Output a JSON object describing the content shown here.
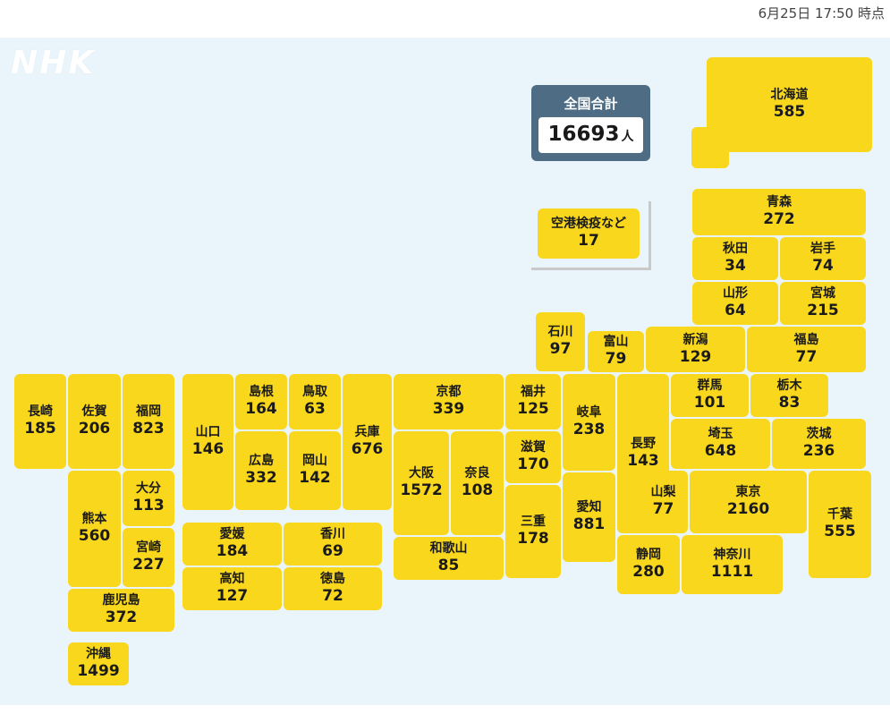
{
  "timestamp": "6月25日 17:50 時点",
  "logo": "NHK",
  "total": {
    "label": "全国合計",
    "value": "16693",
    "unit": "人"
  },
  "airport": {
    "name": "空港検疫など",
    "value": "17"
  },
  "colors": {
    "tile": "#f9d71c",
    "background": "#eaf4fb",
    "total_box": "#4e6d85"
  },
  "prefectures": [
    {
      "id": "hokkaido",
      "name": "北海道",
      "value": "585"
    },
    {
      "id": "aomori",
      "name": "青森",
      "value": "272"
    },
    {
      "id": "akita",
      "name": "秋田",
      "value": "34"
    },
    {
      "id": "iwate",
      "name": "岩手",
      "value": "74"
    },
    {
      "id": "yamagata",
      "name": "山形",
      "value": "64"
    },
    {
      "id": "miyagi",
      "name": "宮城",
      "value": "215"
    },
    {
      "id": "ishikawa",
      "name": "石川",
      "value": "97"
    },
    {
      "id": "toyama",
      "name": "富山",
      "value": "79"
    },
    {
      "id": "niigata",
      "name": "新潟",
      "value": "129"
    },
    {
      "id": "fukushima",
      "name": "福島",
      "value": "77"
    },
    {
      "id": "gunma",
      "name": "群馬",
      "value": "101"
    },
    {
      "id": "tochigi",
      "name": "栃木",
      "value": "83"
    },
    {
      "id": "saitama",
      "name": "埼玉",
      "value": "648"
    },
    {
      "id": "ibaraki",
      "name": "茨城",
      "value": "236"
    },
    {
      "id": "nagano",
      "name": "長野",
      "value": "143"
    },
    {
      "id": "yamanashi",
      "name": "山梨",
      "value": "77"
    },
    {
      "id": "tokyo",
      "name": "東京",
      "value": "2160"
    },
    {
      "id": "chiba",
      "name": "千葉",
      "value": "555"
    },
    {
      "id": "shizuoka",
      "name": "静岡",
      "value": "280"
    },
    {
      "id": "kanagawa",
      "name": "神奈川",
      "value": "1111"
    },
    {
      "id": "fukui",
      "name": "福井",
      "value": "125"
    },
    {
      "id": "gifu",
      "name": "岐阜",
      "value": "238"
    },
    {
      "id": "shiga",
      "name": "滋賀",
      "value": "170"
    },
    {
      "id": "aichi",
      "name": "愛知",
      "value": "881"
    },
    {
      "id": "mie",
      "name": "三重",
      "value": "178"
    },
    {
      "id": "kyoto",
      "name": "京都",
      "value": "339"
    },
    {
      "id": "osaka",
      "name": "大阪",
      "value": "1572"
    },
    {
      "id": "nara",
      "name": "奈良",
      "value": "108"
    },
    {
      "id": "wakayama",
      "name": "和歌山",
      "value": "85"
    },
    {
      "id": "hyogo",
      "name": "兵庫",
      "value": "676"
    },
    {
      "id": "tottori",
      "name": "鳥取",
      "value": "63"
    },
    {
      "id": "shimane",
      "name": "島根",
      "value": "164"
    },
    {
      "id": "okayama",
      "name": "岡山",
      "value": "142"
    },
    {
      "id": "hiroshima",
      "name": "広島",
      "value": "332"
    },
    {
      "id": "yamaguchi",
      "name": "山口",
      "value": "146"
    },
    {
      "id": "ehime",
      "name": "愛媛",
      "value": "184"
    },
    {
      "id": "kagawa",
      "name": "香川",
      "value": "69"
    },
    {
      "id": "kochi",
      "name": "高知",
      "value": "127"
    },
    {
      "id": "tokushima",
      "name": "徳島",
      "value": "72"
    },
    {
      "id": "nagasaki",
      "name": "長崎",
      "value": "185"
    },
    {
      "id": "saga",
      "name": "佐賀",
      "value": "206"
    },
    {
      "id": "fukuoka",
      "name": "福岡",
      "value": "823"
    },
    {
      "id": "oita",
      "name": "大分",
      "value": "113"
    },
    {
      "id": "kumamoto",
      "name": "熊本",
      "value": "560"
    },
    {
      "id": "miyazaki",
      "name": "宮崎",
      "value": "227"
    },
    {
      "id": "kagoshima",
      "name": "鹿児島",
      "value": "372"
    },
    {
      "id": "okinawa",
      "name": "沖縄",
      "value": "1499"
    }
  ]
}
